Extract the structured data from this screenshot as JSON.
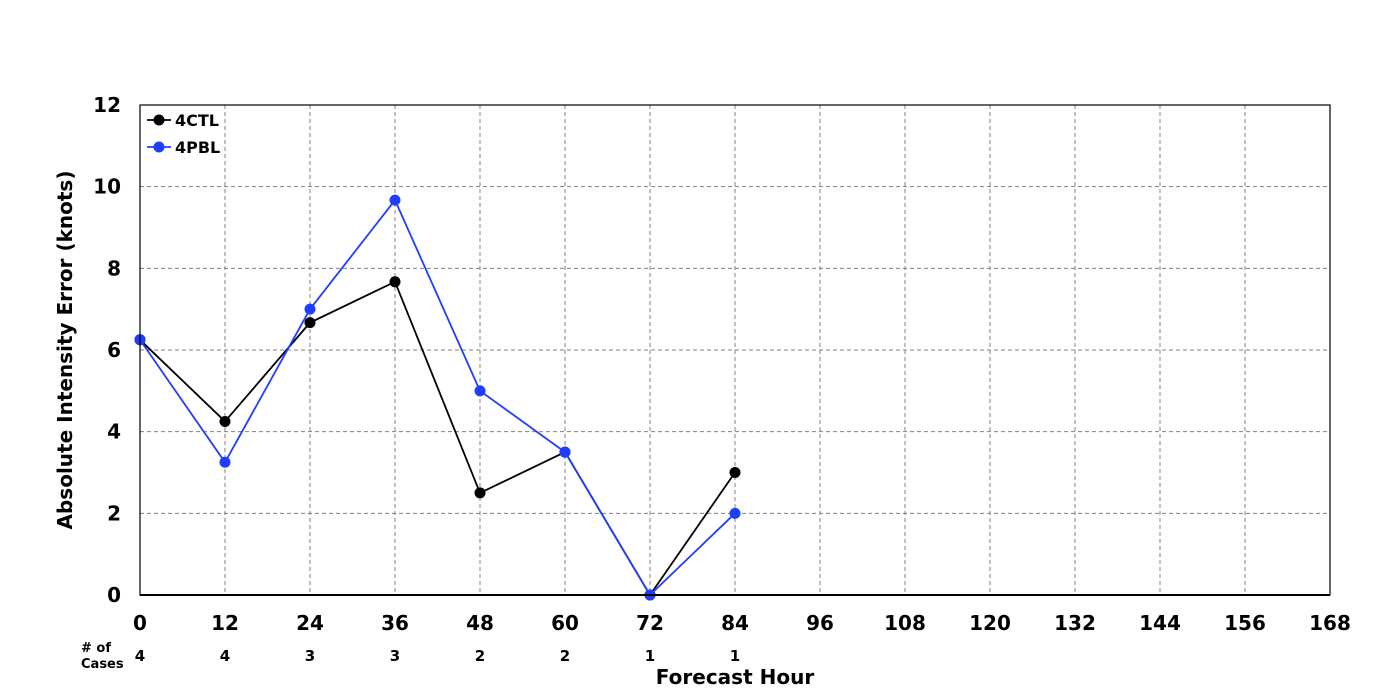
{
  "chart_data": {
    "type": "line",
    "title": "",
    "xlabel": "Forecast Hour",
    "ylabel": "Absolute Intensity Error (knots)",
    "xlim": [
      0,
      168
    ],
    "ylim": [
      0,
      12
    ],
    "x_ticks": [
      0,
      12,
      24,
      36,
      48,
      60,
      72,
      84,
      96,
      108,
      120,
      132,
      144,
      156,
      168
    ],
    "y_ticks": [
      0,
      2,
      4,
      6,
      8,
      10,
      12
    ],
    "grid": true,
    "legend_position": "top-left",
    "cases_label_line1": "# of",
    "cases_label_line2": "Cases",
    "cases_x": [
      0,
      12,
      24,
      36,
      48,
      60,
      72,
      84
    ],
    "cases": [
      4,
      4,
      3,
      3,
      2,
      2,
      1,
      1
    ],
    "series": [
      {
        "name": "4CTL",
        "color": "#000000",
        "x": [
          0,
          12,
          24,
          36,
          48,
          60,
          72,
          84
        ],
        "values": [
          6.25,
          4.25,
          6.67,
          7.67,
          2.5,
          3.5,
          0,
          3
        ]
      },
      {
        "name": "4PBL",
        "color": "#1f3fff",
        "x": [
          0,
          12,
          24,
          36,
          48,
          60,
          72,
          84
        ],
        "values": [
          6.25,
          3.25,
          7.0,
          9.67,
          5.0,
          3.5,
          0,
          2
        ]
      }
    ]
  }
}
